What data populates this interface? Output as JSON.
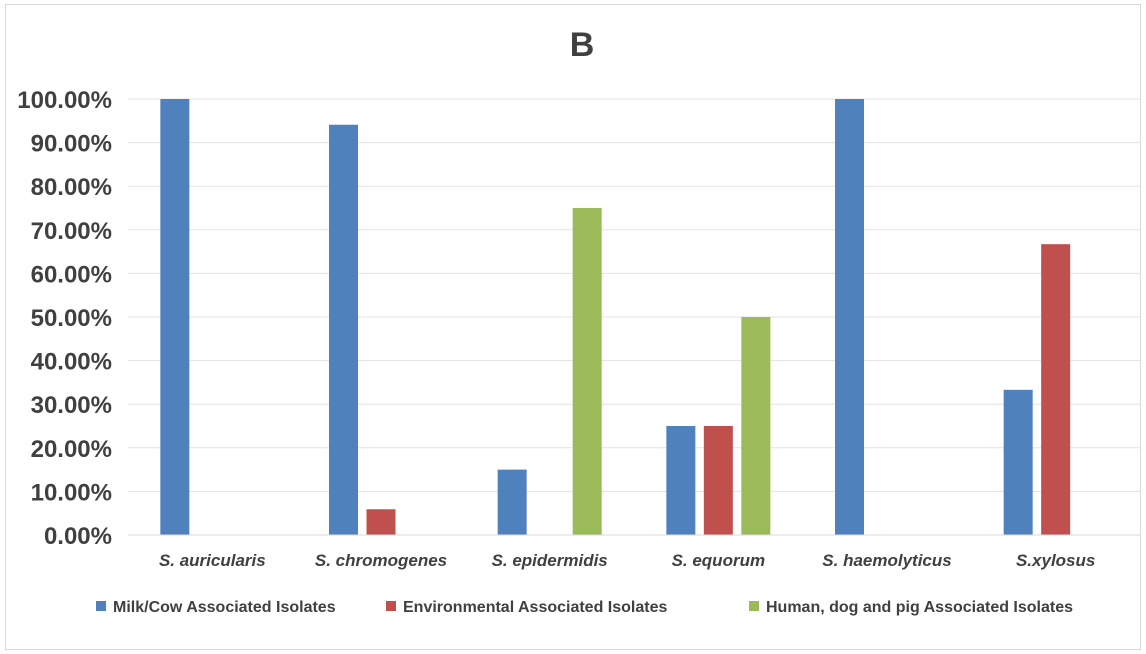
{
  "chart_data": {
    "type": "bar",
    "title": "B",
    "categories": [
      "S. auricularis",
      "S. chromogenes",
      "S. epidermidis",
      "S. equorum",
      "S. haemolyticus",
      "S.xylosus"
    ],
    "series": [
      {
        "name": "Milk/Cow Associated Isolates",
        "color": "#4f81bd",
        "values": [
          100,
          94.1,
          15,
          25,
          100,
          33.3
        ]
      },
      {
        "name": "Environmental Associated Isolates",
        "color": "#c0504d",
        "values": [
          0,
          5.9,
          0,
          25,
          0,
          66.7
        ]
      },
      {
        "name": "Human, dog and pig Associated Isolates",
        "color": "#9bbb59",
        "values": [
          0,
          0,
          75,
          50,
          0,
          0
        ]
      }
    ],
    "yticks": [
      "0.00%",
      "10.00%",
      "20.00%",
      "30.00%",
      "40.00%",
      "50.00%",
      "60.00%",
      "70.00%",
      "80.00%",
      "90.00%",
      "100.00%"
    ],
    "ylim": [
      0,
      100
    ],
    "xlabel": "",
    "ylabel": "",
    "grid": true,
    "legend_position": "bottom"
  }
}
